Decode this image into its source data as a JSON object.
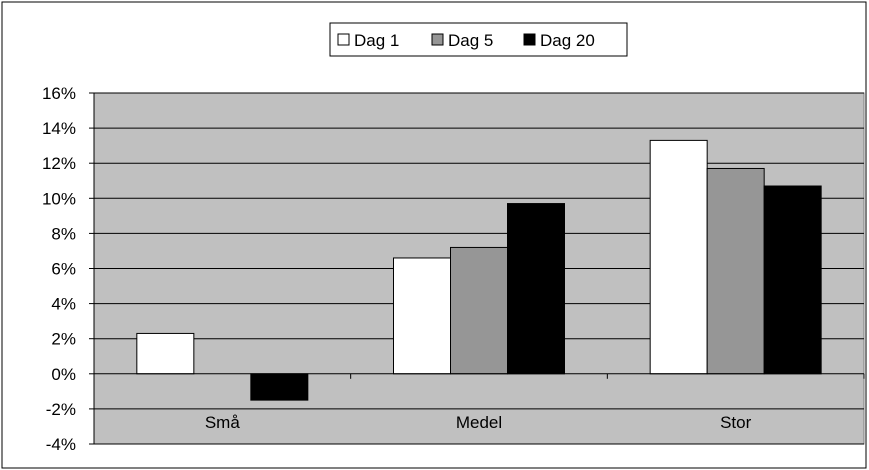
{
  "chart_data": {
    "type": "bar",
    "categories": [
      "Små",
      "Medel",
      "Stor"
    ],
    "series": [
      {
        "name": "Dag 1",
        "color": "#ffffff",
        "values": [
          2.3,
          6.6,
          13.3
        ]
      },
      {
        "name": "Dag 5",
        "color": "#969696",
        "values": [
          0.0,
          7.2,
          11.7
        ]
      },
      {
        "name": "Dag 20",
        "color": "#000000",
        "values": [
          -1.5,
          9.7,
          10.7
        ]
      }
    ],
    "ylim": [
      -4,
      16
    ],
    "yticks": [
      -4,
      -2,
      0,
      2,
      4,
      6,
      8,
      10,
      12,
      14,
      16
    ],
    "ytick_labels": [
      "-4%",
      "-2%",
      "0%",
      "2%",
      "4%",
      "6%",
      "8%",
      "10%",
      "12%",
      "14%",
      "16%"
    ],
    "grid": true,
    "plot_background": "#c0c0c0",
    "legend_position": "top-center",
    "legend_symbol": "■"
  }
}
